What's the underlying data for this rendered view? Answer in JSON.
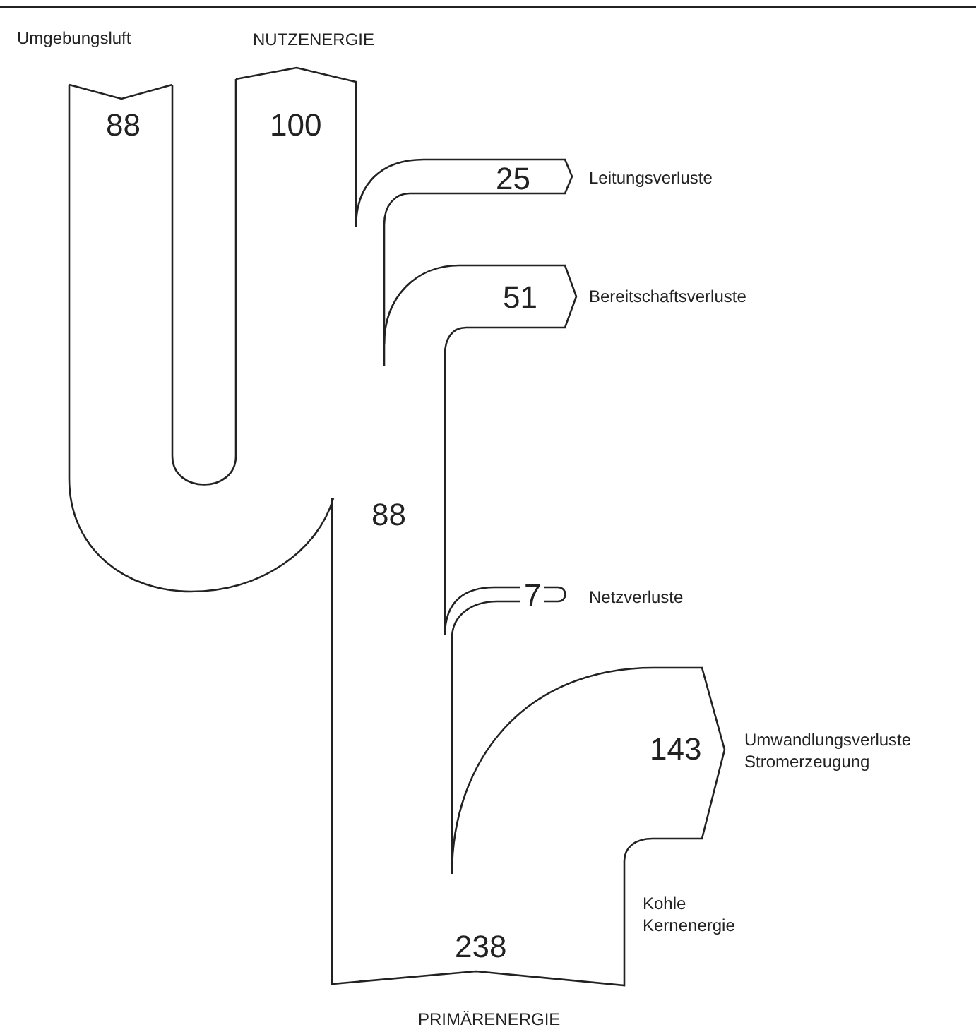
{
  "chart_data": {
    "type": "other",
    "categories": [
      "Kohle\nKernenergie",
      "Umwandlungsverluste\nStromerzeugung",
      "Netzverluste",
      "Umgebungsluft",
      "Bereitschaftsverluste",
      "Leitungsverluste",
      "NUTZENERGIE"
    ],
    "values": [
      238,
      143,
      7,
      88,
      51,
      25,
      100
    ],
    "color": "#222222",
    "data_labels": true,
    "annotations": [
      "PRIMÄRENERGIE",
      "88"
    ]
  }
}
